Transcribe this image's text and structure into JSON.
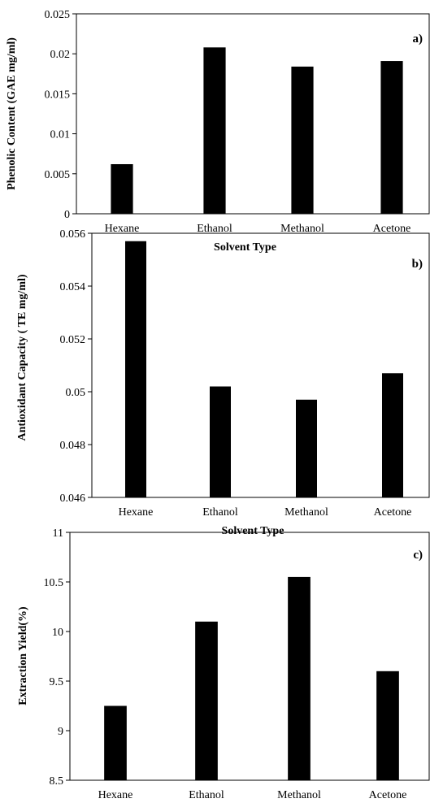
{
  "chart_data": [
    {
      "type": "bar",
      "panel_label": "a)",
      "categories": [
        "Hexane",
        "Ethanol",
        "Methanol",
        "Acetone"
      ],
      "values": [
        0.0062,
        0.0208,
        0.0184,
        0.0191
      ],
      "ylabel": "Phenolic Content (GAE mg/ml)",
      "xlabel": "Solvent Type",
      "ylim": [
        0,
        0.025
      ],
      "yticks": [
        "0",
        "0.005",
        "0.01",
        "0.015",
        "0.02",
        "0.025"
      ],
      "grid": false,
      "bar_color": "#000000"
    },
    {
      "type": "bar",
      "panel_label": "b)",
      "categories": [
        "Hexane",
        "Ethanol",
        "Methanol",
        "Acetone"
      ],
      "values": [
        0.0557,
        0.0502,
        0.0497,
        0.0507
      ],
      "ylabel": "Antioxidant Capacity ( TE mg/ml)",
      "xlabel": "Solvent Type",
      "ylim": [
        0.046,
        0.056
      ],
      "yticks": [
        "0.046",
        "0.048",
        "0.05",
        "0.052",
        "0.054",
        "0.056"
      ],
      "grid": false,
      "bar_color": "#000000"
    },
    {
      "type": "bar",
      "panel_label": "c)",
      "categories": [
        "Hexane",
        "Ethanol",
        "Methanol",
        "Acetone"
      ],
      "values": [
        9.25,
        10.1,
        10.55,
        9.6
      ],
      "ylabel": "Extraction Yield(%)",
      "xlabel": "Solvent Type",
      "ylim": [
        8.5,
        11
      ],
      "yticks": [
        "8.5",
        "9",
        "9.5",
        "10",
        "10.5",
        "11"
      ],
      "grid": false,
      "bar_color": "#000000"
    }
  ]
}
